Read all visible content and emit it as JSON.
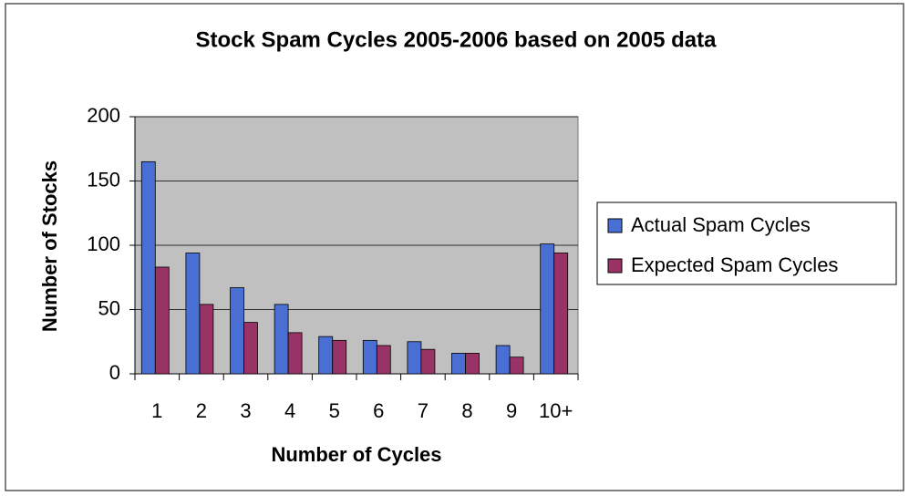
{
  "chart_data": {
    "type": "bar",
    "title": "Stock Spam Cycles 2005-2006 based on 2005 data",
    "x_label": "Number of Cycles",
    "y_label": "Number of Stocks",
    "categories": [
      "1",
      "2",
      "3",
      "4",
      "5",
      "6",
      "7",
      "8",
      "9",
      "10+"
    ],
    "series": [
      {
        "name": "Actual Spam Cycles",
        "color": "#4a6fd4",
        "values": [
          165,
          94,
          67,
          54,
          29,
          26,
          25,
          16,
          22,
          101
        ]
      },
      {
        "name": "Expected Spam Cycles",
        "color": "#993366",
        "values": [
          83,
          54,
          40,
          32,
          26,
          22,
          19,
          16,
          13,
          94
        ]
      }
    ],
    "ylim": [
      0,
      200
    ],
    "yticks": [
      0,
      50,
      100,
      150,
      200
    ],
    "grid": true,
    "legend": "right"
  }
}
